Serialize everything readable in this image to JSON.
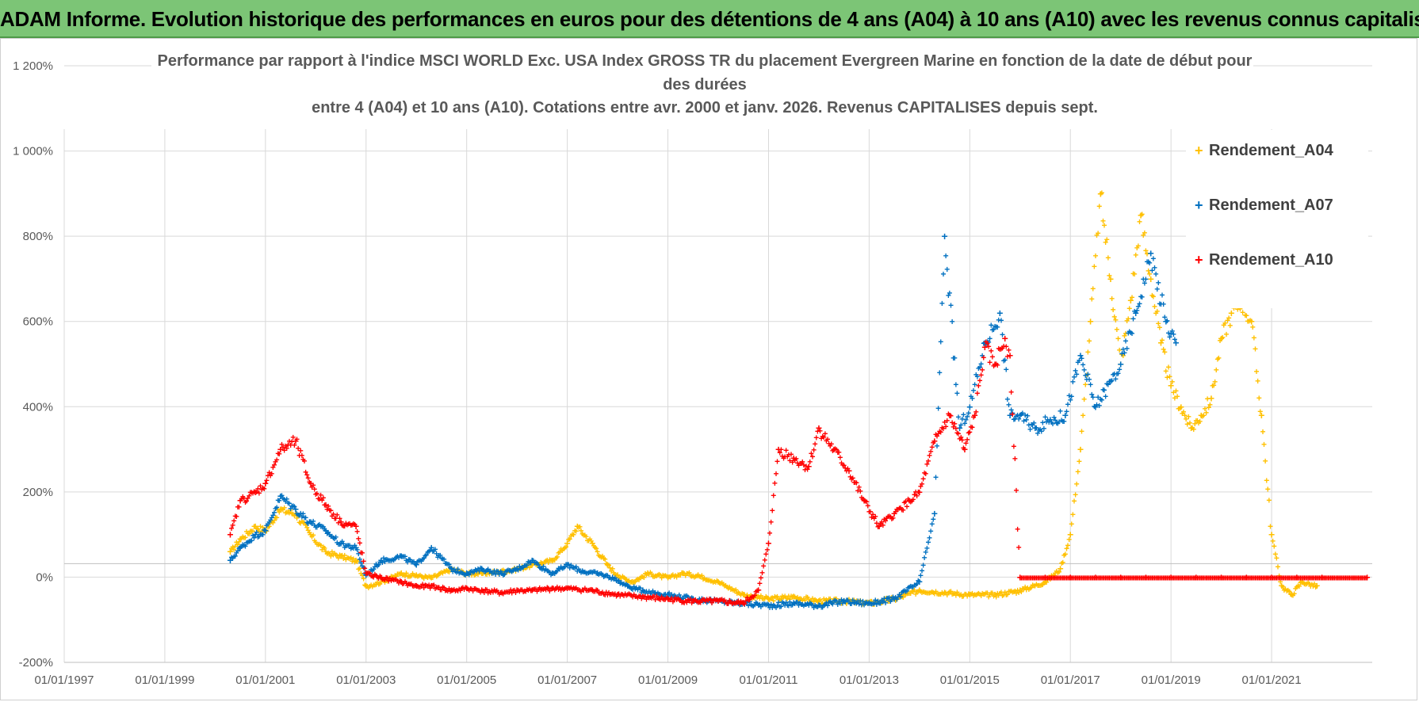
{
  "header": {
    "title": "ADAM Informe. Evolution historique des performances en euros pour des détentions de 4 ans (A04) à 10 ans (A10) avec les revenus connus capitalisés"
  },
  "colors": {
    "banner": "#7cc576",
    "A04": "#ffc000",
    "A07": "#0070c0",
    "A10": "#ff0000",
    "grid": "#d9d9d9",
    "text": "#595959"
  },
  "chart_data": {
    "type": "scatter",
    "title_lines": [
      "Performance par rapport à l'indice MSCI WORLD Exc. USA Index GROSS TR  du placement Evergreen Marine  en fonction de la date de début pour",
      "des durées",
      "entre 4 (A04) et 10 ans (A10). Cotations entre avr. 2000 et janv. 2026. Revenus CAPITALISES depuis sept."
    ],
    "xlabel": "",
    "ylabel": "",
    "x_ticks": [
      "01/01/1997",
      "01/01/1999",
      "01/01/2001",
      "01/01/2003",
      "01/01/2005",
      "01/01/2007",
      "01/01/2009",
      "01/01/2011",
      "01/01/2013",
      "01/01/2015",
      "01/01/2017",
      "01/01/2019",
      "01/01/2021"
    ],
    "xlim": [
      1997.0,
      2023.0
    ],
    "y_ticks": [
      "-200%",
      "0%",
      "200%",
      "400%",
      "600%",
      "800%",
      "1 000%",
      "1 200%"
    ],
    "ylim": [
      -200,
      1200
    ],
    "legend_position": "top-right",
    "series": [
      {
        "name": "Rendement_A04",
        "key": "A04",
        "x": [
          2000.3,
          2000.5,
          2000.8,
          2001.0,
          2001.3,
          2001.6,
          2001.9,
          2002.2,
          2002.5,
          2002.8,
          2003.0,
          2003.3,
          2003.7,
          2004.0,
          2004.3,
          2004.7,
          2005.0,
          2005.3,
          2005.7,
          2006.0,
          2006.3,
          2006.7,
          2007.0,
          2007.2,
          2007.5,
          2007.8,
          2008.0,
          2008.3,
          2008.6,
          2009.0,
          2009.3,
          2009.6,
          2010.0,
          2010.5,
          2011.0,
          2011.5,
          2012.0,
          2012.5,
          2013.0,
          2013.5,
          2014.0,
          2014.5,
          2015.0,
          2015.5,
          2016.0,
          2016.5,
          2016.8,
          2017.0,
          2017.2,
          2017.4,
          2017.6,
          2017.8,
          2018.0,
          2018.2,
          2018.4,
          2018.6,
          2018.8,
          2019.0,
          2019.2,
          2019.4,
          2019.6,
          2019.8,
          2020.0,
          2020.2,
          2020.4,
          2020.6,
          2020.8,
          2021.0,
          2021.2,
          2021.4,
          2021.6,
          2021.9
        ],
        "y": [
          60,
          90,
          120,
          110,
          160,
          150,
          100,
          60,
          50,
          40,
          -20,
          -10,
          10,
          5,
          0,
          20,
          10,
          10,
          15,
          20,
          30,
          40,
          80,
          120,
          80,
          30,
          5,
          -10,
          10,
          0,
          10,
          5,
          -10,
          -40,
          -50,
          -45,
          -55,
          -55,
          -60,
          -50,
          -30,
          -35,
          -40,
          -40,
          -30,
          -10,
          20,
          100,
          300,
          600,
          900,
          700,
          500,
          650,
          850,
          700,
          550,
          450,
          400,
          350,
          380,
          420,
          560,
          620,
          650,
          600,
          380,
          100,
          -20,
          -40,
          -10,
          -20
        ]
      },
      {
        "name": "Rendement_A07",
        "key": "A07",
        "x": [
          2000.3,
          2000.5,
          2000.8,
          2001.0,
          2001.3,
          2001.6,
          2001.9,
          2002.2,
          2002.5,
          2002.8,
          2003.0,
          2003.3,
          2003.7,
          2004.0,
          2004.3,
          2004.7,
          2005.0,
          2005.3,
          2005.7,
          2006.0,
          2006.3,
          2006.7,
          2007.0,
          2007.3,
          2007.6,
          2007.9,
          2008.2,
          2008.5,
          2009.0,
          2009.5,
          2010.0,
          2010.5,
          2011.0,
          2011.5,
          2012.0,
          2012.5,
          2013.0,
          2013.5,
          2014.0,
          2014.3,
          2014.5,
          2014.8,
          2015.0,
          2015.3,
          2015.6,
          2015.8,
          2016.0,
          2016.3,
          2016.6,
          2016.9,
          2017.2,
          2017.5,
          2017.8,
          2018.0,
          2018.3,
          2018.6,
          2018.9,
          2019.1
        ],
        "y": [
          40,
          70,
          100,
          110,
          190,
          160,
          130,
          110,
          80,
          70,
          5,
          40,
          50,
          30,
          70,
          20,
          10,
          20,
          10,
          20,
          40,
          10,
          30,
          15,
          10,
          0,
          -20,
          -30,
          -40,
          -50,
          -55,
          -60,
          -65,
          -60,
          -65,
          -55,
          -60,
          -50,
          -10,
          150,
          800,
          350,
          400,
          550,
          620,
          380,
          380,
          350,
          370,
          380,
          520,
          400,
          460,
          500,
          620,
          760,
          600,
          550
        ]
      },
      {
        "name": "Rendement_A10",
        "key": "A10",
        "x": [
          2000.3,
          2000.5,
          2000.8,
          2001.0,
          2001.3,
          2001.6,
          2001.9,
          2002.2,
          2002.5,
          2002.8,
          2003.0,
          2003.3,
          2003.7,
          2004.0,
          2004.3,
          2004.7,
          2005.0,
          2005.3,
          2005.7,
          2006.0,
          2006.3,
          2006.7,
          2007.0,
          2007.5,
          2008.0,
          2008.5,
          2009.0,
          2009.5,
          2010.0,
          2010.5,
          2010.8,
          2011.0,
          2011.2,
          2011.5,
          2011.8,
          2012.0,
          2012.3,
          2012.6,
          2012.9,
          2013.2,
          2013.5,
          2013.8,
          2014.0,
          2014.3,
          2014.6,
          2014.9,
          2015.1,
          2015.3,
          2015.5,
          2015.7,
          2015.8,
          2016.0,
          2016.5,
          2017.0,
          2017.5,
          2018.0,
          2018.5,
          2019.0,
          2019.5,
          2020.0,
          2020.5,
          2021.0,
          2021.5,
          2022.0,
          2022.9
        ],
        "y": [
          100,
          180,
          200,
          220,
          300,
          320,
          220,
          170,
          130,
          120,
          10,
          0,
          -10,
          -20,
          -20,
          -30,
          -25,
          -30,
          -35,
          -30,
          -30,
          -25,
          -25,
          -30,
          -40,
          -45,
          -50,
          -55,
          -55,
          -60,
          -30,
          80,
          300,
          280,
          260,
          350,
          300,
          250,
          180,
          120,
          150,
          180,
          200,
          320,
          380,
          300,
          380,
          540,
          500,
          560,
          520,
          0,
          0,
          0,
          0,
          0,
          0,
          0,
          0,
          0,
          0,
          0,
          0,
          0,
          0
        ]
      }
    ]
  }
}
